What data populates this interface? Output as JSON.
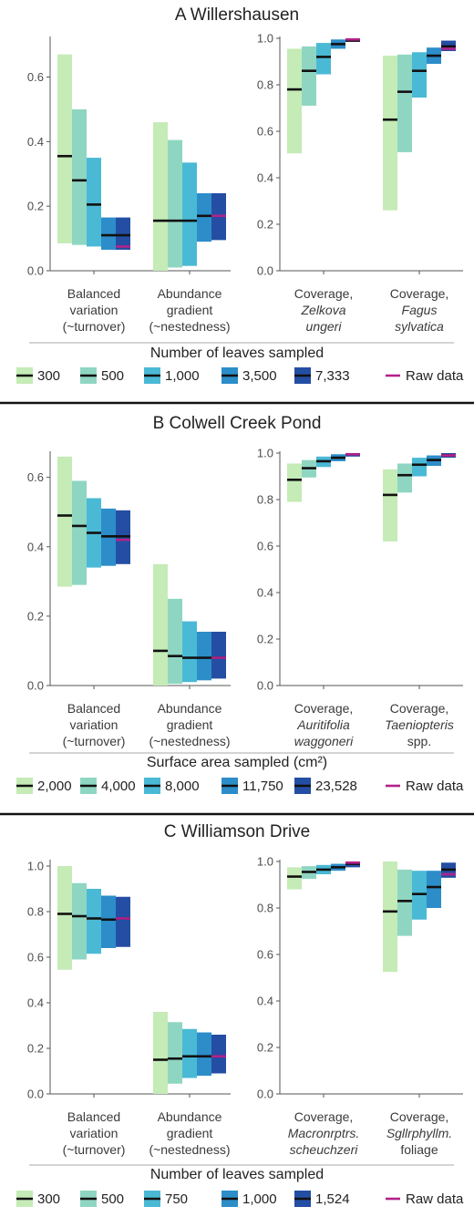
{
  "chart_data": [
    {
      "type": "bar",
      "title": "A Willershausen",
      "legend_title": "Number of leaves sampled",
      "legend_items": [
        "300",
        "500",
        "1,000",
        "3,500",
        "7,333"
      ],
      "raw_label": "Raw data",
      "left": {
        "ylim": [
          0,
          0.72
        ],
        "yticks": [
          "0.0",
          "0.2",
          "0.4",
          "0.6"
        ],
        "categories": [
          [
            "Balanced",
            "variation",
            "(~turnover)"
          ],
          [
            "Abundance",
            "gradient",
            "(~nestedness)"
          ]
        ],
        "groups": [
          {
            "lo": [
              0.085,
              0.08,
              0.075,
              0.065,
              0.065
            ],
            "hi": [
              0.67,
              0.5,
              0.35,
              0.165,
              0.165
            ],
            "med": [
              0.355,
              0.28,
              0.205,
              0.11,
              0.11
            ],
            "raw": 0.075
          },
          {
            "lo": [
              0.0,
              0.01,
              0.015,
              0.09,
              0.095
            ],
            "hi": [
              0.46,
              0.405,
              0.335,
              0.24,
              0.24
            ],
            "med": [
              0.155,
              0.155,
              0.155,
              0.17,
              0.17
            ],
            "raw": 0.17
          }
        ]
      },
      "right": {
        "ylim": [
          0,
          1.0
        ],
        "yticks": [
          "0.0",
          "0.2",
          "0.4",
          "0.6",
          "0.8",
          "1.0"
        ],
        "categories": [
          [
            "Coverage,",
            "Zelkova",
            "ungeri"
          ],
          [
            "Coverage,",
            "Fagus",
            "sylvatica"
          ]
        ],
        "groups": [
          {
            "lo": [
              0.505,
              0.71,
              0.845,
              0.955,
              0.985
            ],
            "hi": [
              0.955,
              0.965,
              0.98,
              0.995,
              1.0
            ],
            "med": [
              0.78,
              0.86,
              0.92,
              0.975,
              0.99
            ],
            "raw": 0.995
          },
          {
            "lo": [
              0.26,
              0.51,
              0.745,
              0.89,
              0.945
            ],
            "hi": [
              0.925,
              0.93,
              0.94,
              0.96,
              0.99
            ],
            "med": [
              0.65,
              0.77,
              0.86,
              0.925,
              0.965
            ],
            "raw": 0.955
          }
        ]
      }
    },
    {
      "type": "bar",
      "title": "B Colwell Creek Pond",
      "legend_title": "Surface area sampled (cm²)",
      "legend_items": [
        "2,000",
        "4,000",
        "8,000",
        "11,750",
        "23,528"
      ],
      "raw_label": "Raw data",
      "left": {
        "ylim": [
          0,
          0.67
        ],
        "yticks": [
          "0.0",
          "0.2",
          "0.4",
          "0.6"
        ],
        "categories": [
          [
            "Balanced",
            "variation",
            "(~turnover)"
          ],
          [
            "Abundance",
            "gradient",
            "(~nestedness)"
          ]
        ],
        "groups": [
          {
            "lo": [
              0.285,
              0.29,
              0.34,
              0.345,
              0.35
            ],
            "hi": [
              0.66,
              0.59,
              0.54,
              0.51,
              0.505
            ],
            "med": [
              0.49,
              0.46,
              0.44,
              0.43,
              0.43
            ],
            "raw": 0.42
          },
          {
            "lo": [
              0.0,
              0.005,
              0.01,
              0.015,
              0.02
            ],
            "hi": [
              0.35,
              0.25,
              0.185,
              0.155,
              0.155
            ],
            "med": [
              0.1,
              0.085,
              0.08,
              0.08,
              0.08
            ],
            "raw": 0.08
          }
        ]
      },
      "right": {
        "ylim": [
          0,
          1.0
        ],
        "yticks": [
          "0.0",
          "0.2",
          "0.4",
          "0.6",
          "0.8",
          "1.0"
        ],
        "categories": [
          [
            "Coverage,",
            "Auritifolia",
            "waggoneri"
          ],
          [
            "Coverage,",
            "Taeniopteris",
            "spp."
          ]
        ],
        "groups": [
          {
            "lo": [
              0.79,
              0.895,
              0.94,
              0.965,
              0.985
            ],
            "hi": [
              0.955,
              0.97,
              0.985,
              0.995,
              1.0
            ],
            "med": [
              0.885,
              0.935,
              0.965,
              0.98,
              0.995
            ],
            "raw": 0.995
          },
          {
            "lo": [
              0.62,
              0.83,
              0.9,
              0.945,
              0.98
            ],
            "hi": [
              0.93,
              0.955,
              0.98,
              0.99,
              1.0
            ],
            "med": [
              0.82,
              0.905,
              0.95,
              0.97,
              0.99
            ],
            "raw": 0.99
          }
        ]
      }
    },
    {
      "type": "bar",
      "title": "C Williamson Drive",
      "legend_title": "Number of leaves sampled",
      "legend_items": [
        "300",
        "500",
        "750",
        "1,000",
        "1,524"
      ],
      "raw_label": "Raw data",
      "left": {
        "ylim": [
          0,
          1.02
        ],
        "yticks": [
          "0.0",
          "0.2",
          "0.4",
          "0.6",
          "0.8",
          "1.0"
        ],
        "categories": [
          [
            "Balanced",
            "variation",
            "(~turnover)"
          ],
          [
            "Abundance",
            "gradient",
            "(~nestedness)"
          ]
        ],
        "groups": [
          {
            "lo": [
              0.545,
              0.59,
              0.615,
              0.64,
              0.645
            ],
            "hi": [
              1.0,
              0.925,
              0.9,
              0.87,
              0.865
            ],
            "med": [
              0.79,
              0.78,
              0.77,
              0.765,
              0.77
            ],
            "raw": 0.77
          },
          {
            "lo": [
              0.0,
              0.045,
              0.07,
              0.08,
              0.09
            ],
            "hi": [
              0.36,
              0.315,
              0.285,
              0.27,
              0.26
            ],
            "med": [
              0.15,
              0.155,
              0.165,
              0.165,
              0.165
            ],
            "raw": 0.165
          }
        ]
      },
      "right": {
        "ylim": [
          0,
          1.0
        ],
        "yticks": [
          "0.0",
          "0.2",
          "0.4",
          "0.6",
          "0.8",
          "1.0"
        ],
        "categories": [
          [
            "Coverage,",
            "Macronrptrs.",
            "scheuchzeri"
          ],
          [
            "Coverage,",
            "Sgllrphyllm.",
            "foliage"
          ]
        ],
        "groups": [
          {
            "lo": [
              0.88,
              0.925,
              0.945,
              0.96,
              0.975
            ],
            "hi": [
              0.975,
              0.98,
              0.985,
              0.99,
              1.0
            ],
            "med": [
              0.935,
              0.955,
              0.965,
              0.975,
              0.99
            ],
            "raw": 0.995
          },
          {
            "lo": [
              0.525,
              0.68,
              0.75,
              0.8,
              0.93
            ],
            "hi": [
              1.0,
              0.965,
              0.96,
              0.96,
              0.995
            ],
            "med": [
              0.785,
              0.83,
              0.86,
              0.89,
              0.965
            ],
            "raw": 0.945
          }
        ]
      }
    }
  ],
  "colors": {
    "series": [
      "#c5ebb6",
      "#8fd6c2",
      "#4ab9d5",
      "#2c8dc9",
      "#244ea3"
    ],
    "median": "#111111",
    "raw": "#b3228a",
    "axis": "#555555",
    "divider": "#aaaaaa",
    "section_rule": "#111111"
  },
  "italic_category_lines": [
    1,
    2
  ],
  "italic_exceptions": [
    "spp.",
    "foliage"
  ]
}
